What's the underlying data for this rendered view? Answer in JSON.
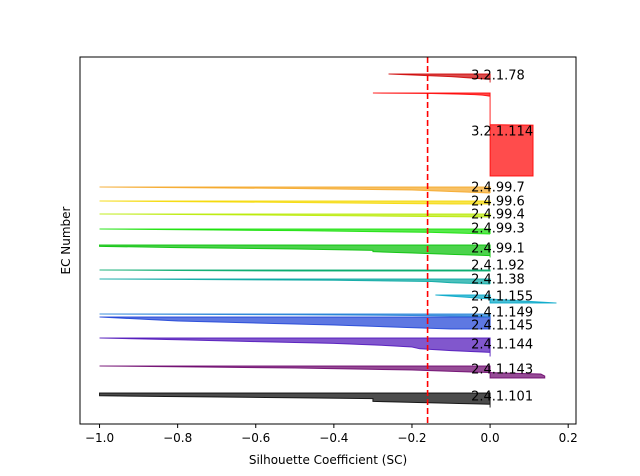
{
  "chart_data": {
    "type": "area",
    "title": "",
    "xlabel": "Silhouette Coefficient (SC)",
    "ylabel": "EC Number",
    "xlim": [
      -1.05,
      0.22
    ],
    "xticks": [
      -1.0,
      -0.8,
      -0.6,
      -0.4,
      -0.2,
      0.0,
      0.2
    ],
    "xtick_labels": [
      "−1.0",
      "−0.8",
      "−0.6",
      "−0.4",
      "−0.2",
      "0.0",
      "0.2"
    ],
    "yticks": [],
    "grid": false,
    "legend": "none",
    "mean_silhouette_line": {
      "value": -0.16,
      "color": "#ff0000",
      "style": "dashed"
    },
    "ordering": "clusters stacked bottom-to-top; silhouette values sorted descending within each cluster",
    "clusters": [
      {
        "name": "2.4.1.101",
        "color": "#000000",
        "values": [
          0.0,
          0.0,
          -0.3,
          -0.3,
          -1.0,
          -1.0
        ]
      },
      {
        "name": "2.4.1.143",
        "color": "#6a006a",
        "values": [
          0.14,
          0.14,
          0.13,
          -0.05,
          -0.2,
          -0.5,
          -1.0
        ]
      },
      {
        "name": "2.4.1.144",
        "color": "#4b0fb8",
        "values": [
          0.0,
          0.0,
          0.0,
          -0.1,
          -0.18,
          -0.2,
          -0.28,
          -0.4,
          -0.6,
          -0.8,
          -1.0
        ]
      },
      {
        "name": "2.4.1.145",
        "color": "#1a3fd6",
        "values": [
          -0.1,
          -0.4,
          -0.8,
          -1.0
        ]
      },
      {
        "name": "2.4.1.149",
        "color": "#1f7fd6",
        "values": [
          0.0,
          -0.05,
          -0.2,
          -0.5,
          -1.0
        ]
      },
      {
        "name": "2.4.1.155",
        "color": "#00a6c8",
        "values": [
          0.17,
          0.0,
          -0.14
        ]
      },
      {
        "name": "2.4.1.38",
        "color": "#00a5a0",
        "values": [
          0.0,
          -0.1,
          -0.15,
          -0.4,
          -1.0
        ]
      },
      {
        "name": "2.4.1.92",
        "color": "#00a86a",
        "values": [
          -0.5,
          -0.8,
          -1.0
        ]
      },
      {
        "name": "2.4.99.1",
        "color": "#00c000",
        "values": [
          0.0,
          0.0,
          -0.1,
          -0.2,
          -0.3,
          -0.3,
          -0.5,
          -0.8,
          -1.0,
          -1.0
        ]
      },
      {
        "name": "2.4.99.3",
        "color": "#10e000",
        "values": [
          0.0,
          -0.15,
          -0.5,
          -1.0
        ]
      },
      {
        "name": "2.4.99.4",
        "color": "#b8ea00",
        "values": [
          0.0,
          -0.3,
          -0.6,
          -1.0
        ]
      },
      {
        "name": "2.4.99.6",
        "color": "#f5d800",
        "values": [
          -0.1,
          -0.5,
          -1.0
        ]
      },
      {
        "name": "2.4.99.7",
        "color": "#f5a623",
        "values": [
          0.0,
          -0.1,
          -0.2,
          -0.5,
          -1.0
        ]
      },
      {
        "name": "3.2.1.114",
        "color": "#ff0000",
        "values": [
          0.11,
          0.11,
          0.11,
          0.11,
          0.11,
          0.11,
          0.11,
          0.11,
          0.11,
          0.11,
          0.11,
          0.11,
          0.11,
          0.11,
          0.11,
          0.11,
          0.11,
          0.11,
          0.11,
          0.11,
          0.11,
          0.11,
          0.11,
          0.11,
          0.11,
          0.11,
          0.11,
          0.11,
          0.11,
          0.11,
          0.11,
          0.11,
          0.11,
          0.11,
          0.11,
          0.11,
          0.11,
          0.11,
          0.11,
          0.11,
          0.11,
          0.11,
          0.11,
          0.11,
          0.11,
          0.11,
          0.11,
          0.11,
          0.11,
          0.11,
          0.11,
          0.11,
          0.11,
          0.11,
          0.11,
          0.11,
          0.11,
          0.11,
          0.11,
          0.11,
          0.11,
          0.11,
          0.11,
          0.11,
          0.11,
          0.11,
          0.11,
          0.11,
          0.11,
          0.11,
          0.11,
          0.11,
          0.11,
          0.11,
          0.11,
          0.11,
          0.11,
          0.11,
          0.11,
          0.11,
          0.11,
          0.11,
          0.11,
          0.11,
          0.11,
          0.11,
          0.11,
          0.11,
          0.11,
          0.11,
          0.11,
          0.11,
          0.11,
          0.11,
          0.11,
          0.11,
          0.0,
          0.0,
          0.0,
          0.0,
          0.0,
          0.0,
          0.0,
          0.0,
          0.0,
          0.0,
          0.0,
          0.0,
          0.0,
          0.0,
          0.0,
          0.0,
          0.0,
          0.0,
          0.0,
          0.0,
          0.0,
          0.0,
          0.0,
          0.0,
          0.0,
          0.0,
          0.0,
          0.0,
          0.0,
          0.0,
          0.0,
          0.0,
          0.0,
          0.0,
          0.0,
          0.0,
          0.0,
          0.0,
          0.0,
          0.0,
          0.0,
          0.0,
          0.0,
          0.0,
          0.0,
          0.0,
          0.0,
          0.0,
          0.0,
          0.0,
          0.0,
          0.0,
          0.0,
          0.0,
          -0.01,
          -0.02,
          -0.04,
          -0.08,
          -0.15,
          -0.3
        ]
      },
      {
        "name": "3.2.1.78",
        "color": "#cc0000",
        "values": [
          0.0,
          0.0,
          -0.1,
          -0.26
        ]
      }
    ]
  }
}
